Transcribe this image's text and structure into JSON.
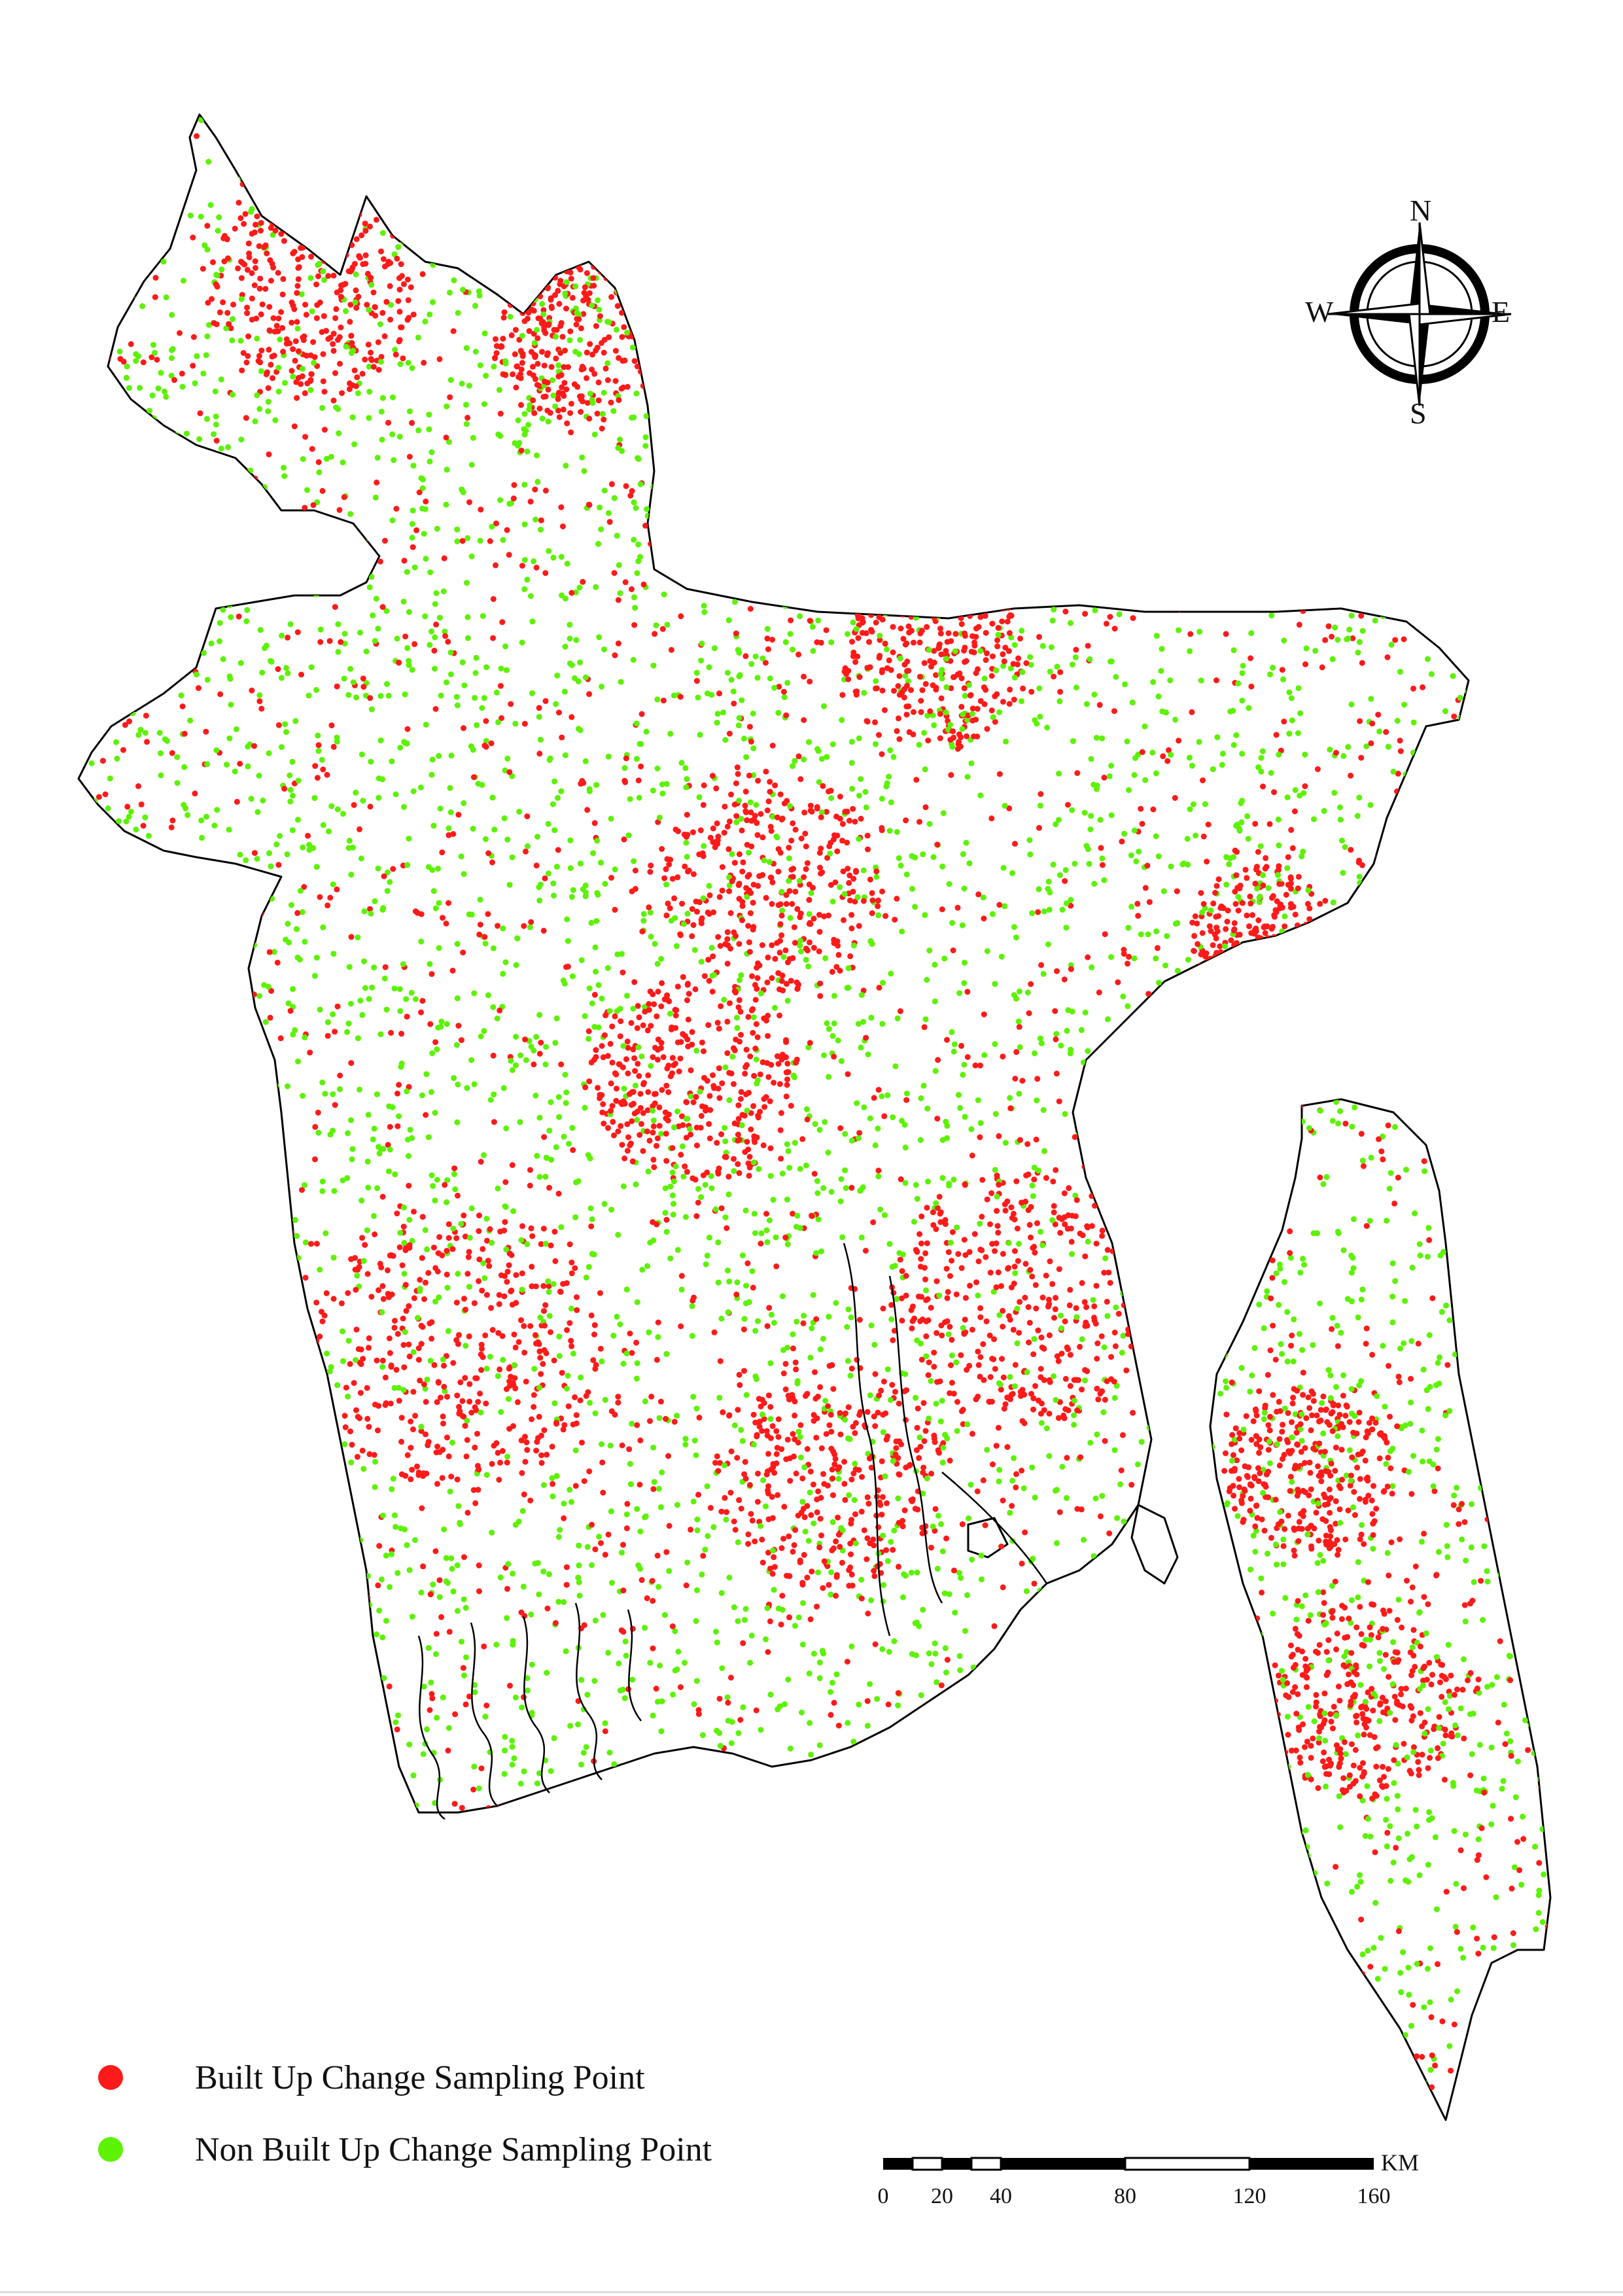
{
  "legend": {
    "items": [
      {
        "label": "Built Up Change Sampling Point",
        "color": "#ff1a1a"
      },
      {
        "label": "Non Built Up Change Sampling Point",
        "color": "#5cf200"
      }
    ]
  },
  "compass": {
    "n": "N",
    "s": "S",
    "e": "E",
    "w": "W"
  },
  "scale_bar": {
    "unit": "KM",
    "ticks": [
      "0",
      "20",
      "40",
      "80",
      "120",
      "160"
    ]
  },
  "colors": {
    "built_up": "#ff1a1a",
    "non_built_up": "#5cf200",
    "outline": "#000000"
  }
}
